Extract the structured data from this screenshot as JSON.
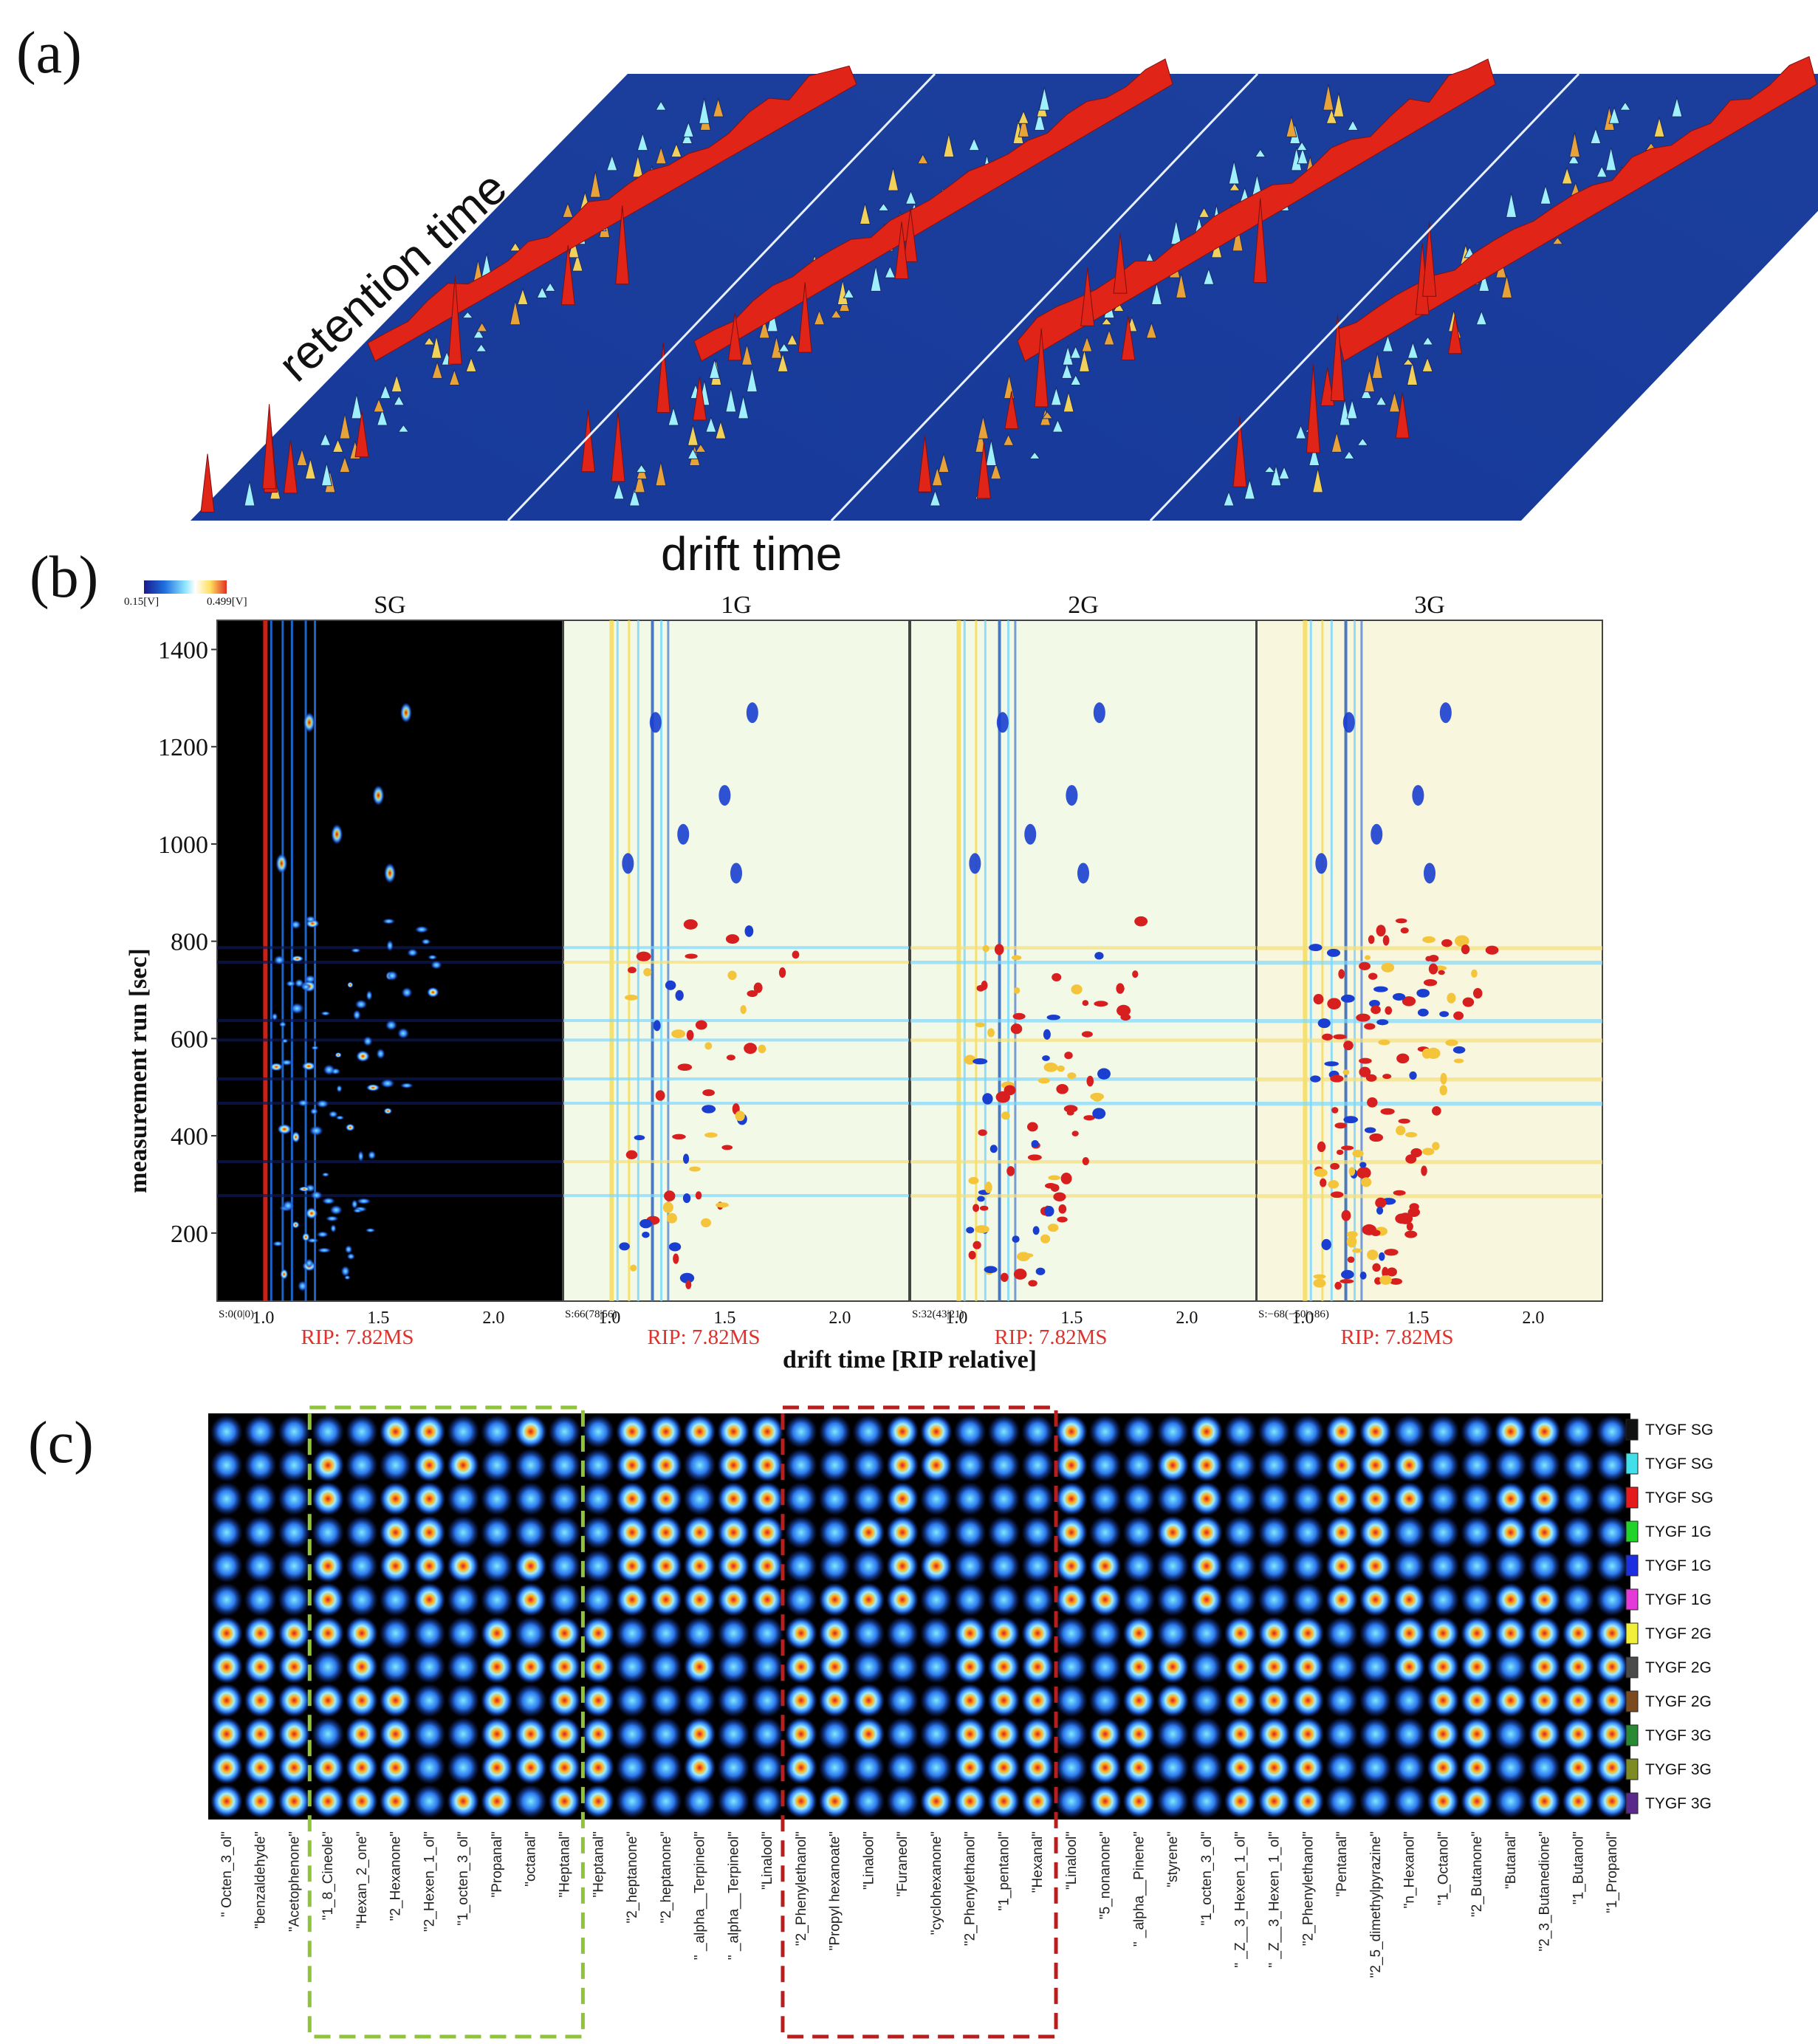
{
  "panel_a": {
    "letter": "(a)",
    "axis_retention": "retention time",
    "axis_drift": "drift time"
  },
  "panel_b": {
    "letter": "(b)",
    "colorbar": {
      "min_label": "0.15[V]",
      "max_label": "0.499[V]",
      "colors": [
        "#1a1a8a",
        "#1f6fe0",
        "#8fe6ff",
        "#ffffff",
        "#ffe060",
        "#e23020"
      ]
    }
  },
  "panel_c": {
    "letter": "(c)",
    "legend": [
      {
        "label": "TYGF SG",
        "color": "#111111"
      },
      {
        "label": "TYGF SG",
        "color": "#41e0e8"
      },
      {
        "label": "TYGF SG",
        "color": "#e51a1a"
      },
      {
        "label": "TYGF 1G",
        "color": "#22d32a"
      },
      {
        "label": "TYGF 1G",
        "color": "#1c2fe0"
      },
      {
        "label": "TYGF 1G",
        "color": "#e33ad8"
      },
      {
        "label": "TYGF 2G",
        "color": "#f1ef3a"
      },
      {
        "label": "TYGF 2G",
        "color": "#4a4a4a"
      },
      {
        "label": "TYGF 2G",
        "color": "#7b4a1e"
      },
      {
        "label": "TYGF 3G",
        "color": "#2a8a33"
      },
      {
        "label": "TYGF 3G",
        "color": "#7e8a22"
      },
      {
        "label": "TYGF 3G",
        "color": "#5a2a8a"
      }
    ],
    "box_colors": {
      "green": "#8fc43a",
      "red": "#b81e1e"
    }
  },
  "chart_data": [
    {
      "type": "heatmap",
      "title": "",
      "subtype": "3D topographic GC-IMS spectra (4 samples)",
      "xlabel": "drift time",
      "ylabel": "retention time"
    },
    {
      "type": "heatmap",
      "subtype": "GC-IMS 2D spectra (difference comparison)",
      "xlabel": "drift time [RIP relative]",
      "ylabel": "measurement run [sec]",
      "xlim": [
        0.8,
        2.3
      ],
      "ylim": [
        60,
        1460
      ],
      "x_ticks": [
        "1.0",
        "1.5",
        "2.0"
      ],
      "y_ticks": [
        200,
        400,
        600,
        800,
        1000,
        1200,
        1400
      ],
      "panels": [
        {
          "name": "SG",
          "status": "S:0(0|0)",
          "rip": "RIP: 7.82MS"
        },
        {
          "name": "1G",
          "status": "S:66(78|56)",
          "rip": "RIP: 7.82MS"
        },
        {
          "name": "2G",
          "status": "S:32(43|21)",
          "rip": "RIP: 7.82MS"
        },
        {
          "name": "3G",
          "status": "S:−68(−50|−86)",
          "rip": "RIP: 7.82MS"
        }
      ]
    },
    {
      "type": "heatmap",
      "subtype": "fingerprint gallery plot",
      "rows": 12,
      "row_labels": [
        "TYGF SG",
        "TYGF SG",
        "TYGF SG",
        "TYGF 1G",
        "TYGF 1G",
        "TYGF 1G",
        "TYGF 2G",
        "TYGF 2G",
        "TYGF 2G",
        "TYGF 3G",
        "TYGF 3G",
        "TYGF 3G"
      ],
      "compounds": [
        "\" Octen_3_ol\"",
        "\"benzaldehyde\"",
        "\"Acetophenone\"",
        "\"1_8_Cineole\"",
        "\"Hexan_2_one\"",
        "\"2_Hexanone\"",
        "\"2_Hexen_1_ol\"",
        "\"1_octen_3_ol\"",
        "\"Propanal\"",
        "\"octanal\"",
        "\"Heptanal\"",
        "\"Heptanal\"",
        "\"2_heptanone\"",
        "\"2_heptanone\"",
        "\" _alpha__Terpineol\"",
        "\" _alpha__Terpineol\"",
        "\"Linalool\"",
        "\"2_Phenylethanol\"",
        "\"Propyl hexanoate\"",
        "\"Linalool\"",
        "\"Furaneol\"",
        "\"cyclohexanone\"",
        "\"2_Phenylethanol\"",
        "\"1_pentanol\"",
        "\"Hexanal\"",
        "\"Linalool\"",
        "\"5_nonanone\"",
        "\" _alpha__Pinene\"",
        "\"styrene\"",
        "\"1_octen_3_ol\"",
        "\" _Z__3_Hexen_1_ol\"",
        "\" _Z__3_Hexen_1_ol\"",
        "\"2_Phenylethanol\"",
        "\"Pentanal\"",
        "\"2_5_dimethylpyrazine\"",
        "\"n_Hexanol\"",
        "\"1_Octanol\"",
        "\"2_Butanone\"",
        "\"Butanal\"",
        "\"2_3_Butanedione\"",
        "\"1_Butanol\"",
        "\"1_Propanol\""
      ],
      "highlight_groups": [
        {
          "color": "green",
          "from": "\"1_8_Cineole\"",
          "to": "\"Heptanal\""
        },
        {
          "color": "red",
          "from": "\"2_Phenylethanol\"",
          "to": "\"Hexanal\""
        }
      ]
    }
  ]
}
